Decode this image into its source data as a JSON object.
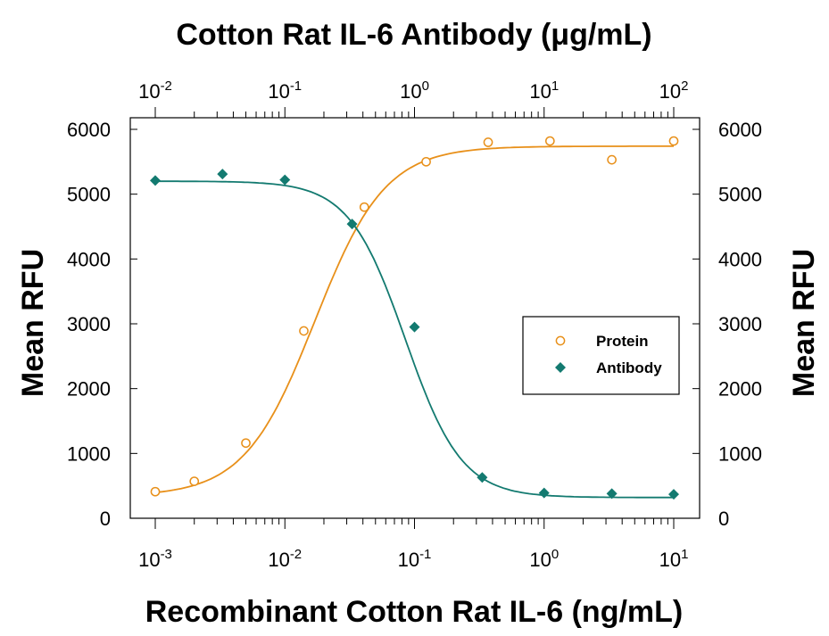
{
  "chart_data": {
    "type": "scatter",
    "title": "Cotton Rat IL-6 Antibody (μg/mL)",
    "xlabel": "Recombinant Cotton Rat IL-6 (ng/mL)",
    "ylabel": "Mean RFU",
    "ylabel_right": "Mean RFU",
    "x_scale": "log",
    "xlim": [
      0.001,
      10
    ],
    "x_tick_labels": [
      {
        "base": "10",
        "exp": "-3"
      },
      {
        "base": "10",
        "exp": "-2"
      },
      {
        "base": "10",
        "exp": "-1"
      },
      {
        "base": "10",
        "exp": "0"
      },
      {
        "base": "10",
        "exp": "1"
      }
    ],
    "x_top_scale": "log",
    "x_top_lim": [
      0.01,
      100
    ],
    "x_top_tick_labels": [
      {
        "base": "10",
        "exp": "-2"
      },
      {
        "base": "10",
        "exp": "-1"
      },
      {
        "base": "10",
        "exp": "0"
      },
      {
        "base": "10",
        "exp": "1"
      },
      {
        "base": "10",
        "exp": "2"
      }
    ],
    "ylim": [
      0,
      6000
    ],
    "y_ticks": [
      "0",
      "1000",
      "2000",
      "3000",
      "4000",
      "5000",
      "6000"
    ],
    "grid": false,
    "legend_position": "center-right",
    "series": [
      {
        "name": "Protein",
        "axis": "bottom",
        "marker": "open-circle",
        "color": "#E8901A",
        "x": [
          0.001,
          0.002,
          0.005,
          0.014,
          0.041,
          0.123,
          0.37,
          1.11,
          3.33,
          10
        ],
        "values": [
          410,
          570,
          1160,
          2890,
          4800,
          5500,
          5800,
          5820,
          5530,
          5820
        ],
        "fit": {
          "bottom": 340,
          "top": 5740,
          "ec50": 0.017,
          "hill": 1.6
        }
      },
      {
        "name": "Antibody",
        "axis": "top",
        "marker": "filled-diamond",
        "color": "#137A70",
        "x": [
          0.01,
          0.033,
          0.1,
          0.33,
          1,
          3.33,
          10,
          33.3,
          100
        ],
        "values": [
          5210,
          5310,
          5220,
          4540,
          2950,
          630,
          390,
          380,
          370
        ],
        "fit": {
          "bottom": 320,
          "top": 5200,
          "ic50": 0.85,
          "hill": 2.0
        }
      }
    ]
  }
}
